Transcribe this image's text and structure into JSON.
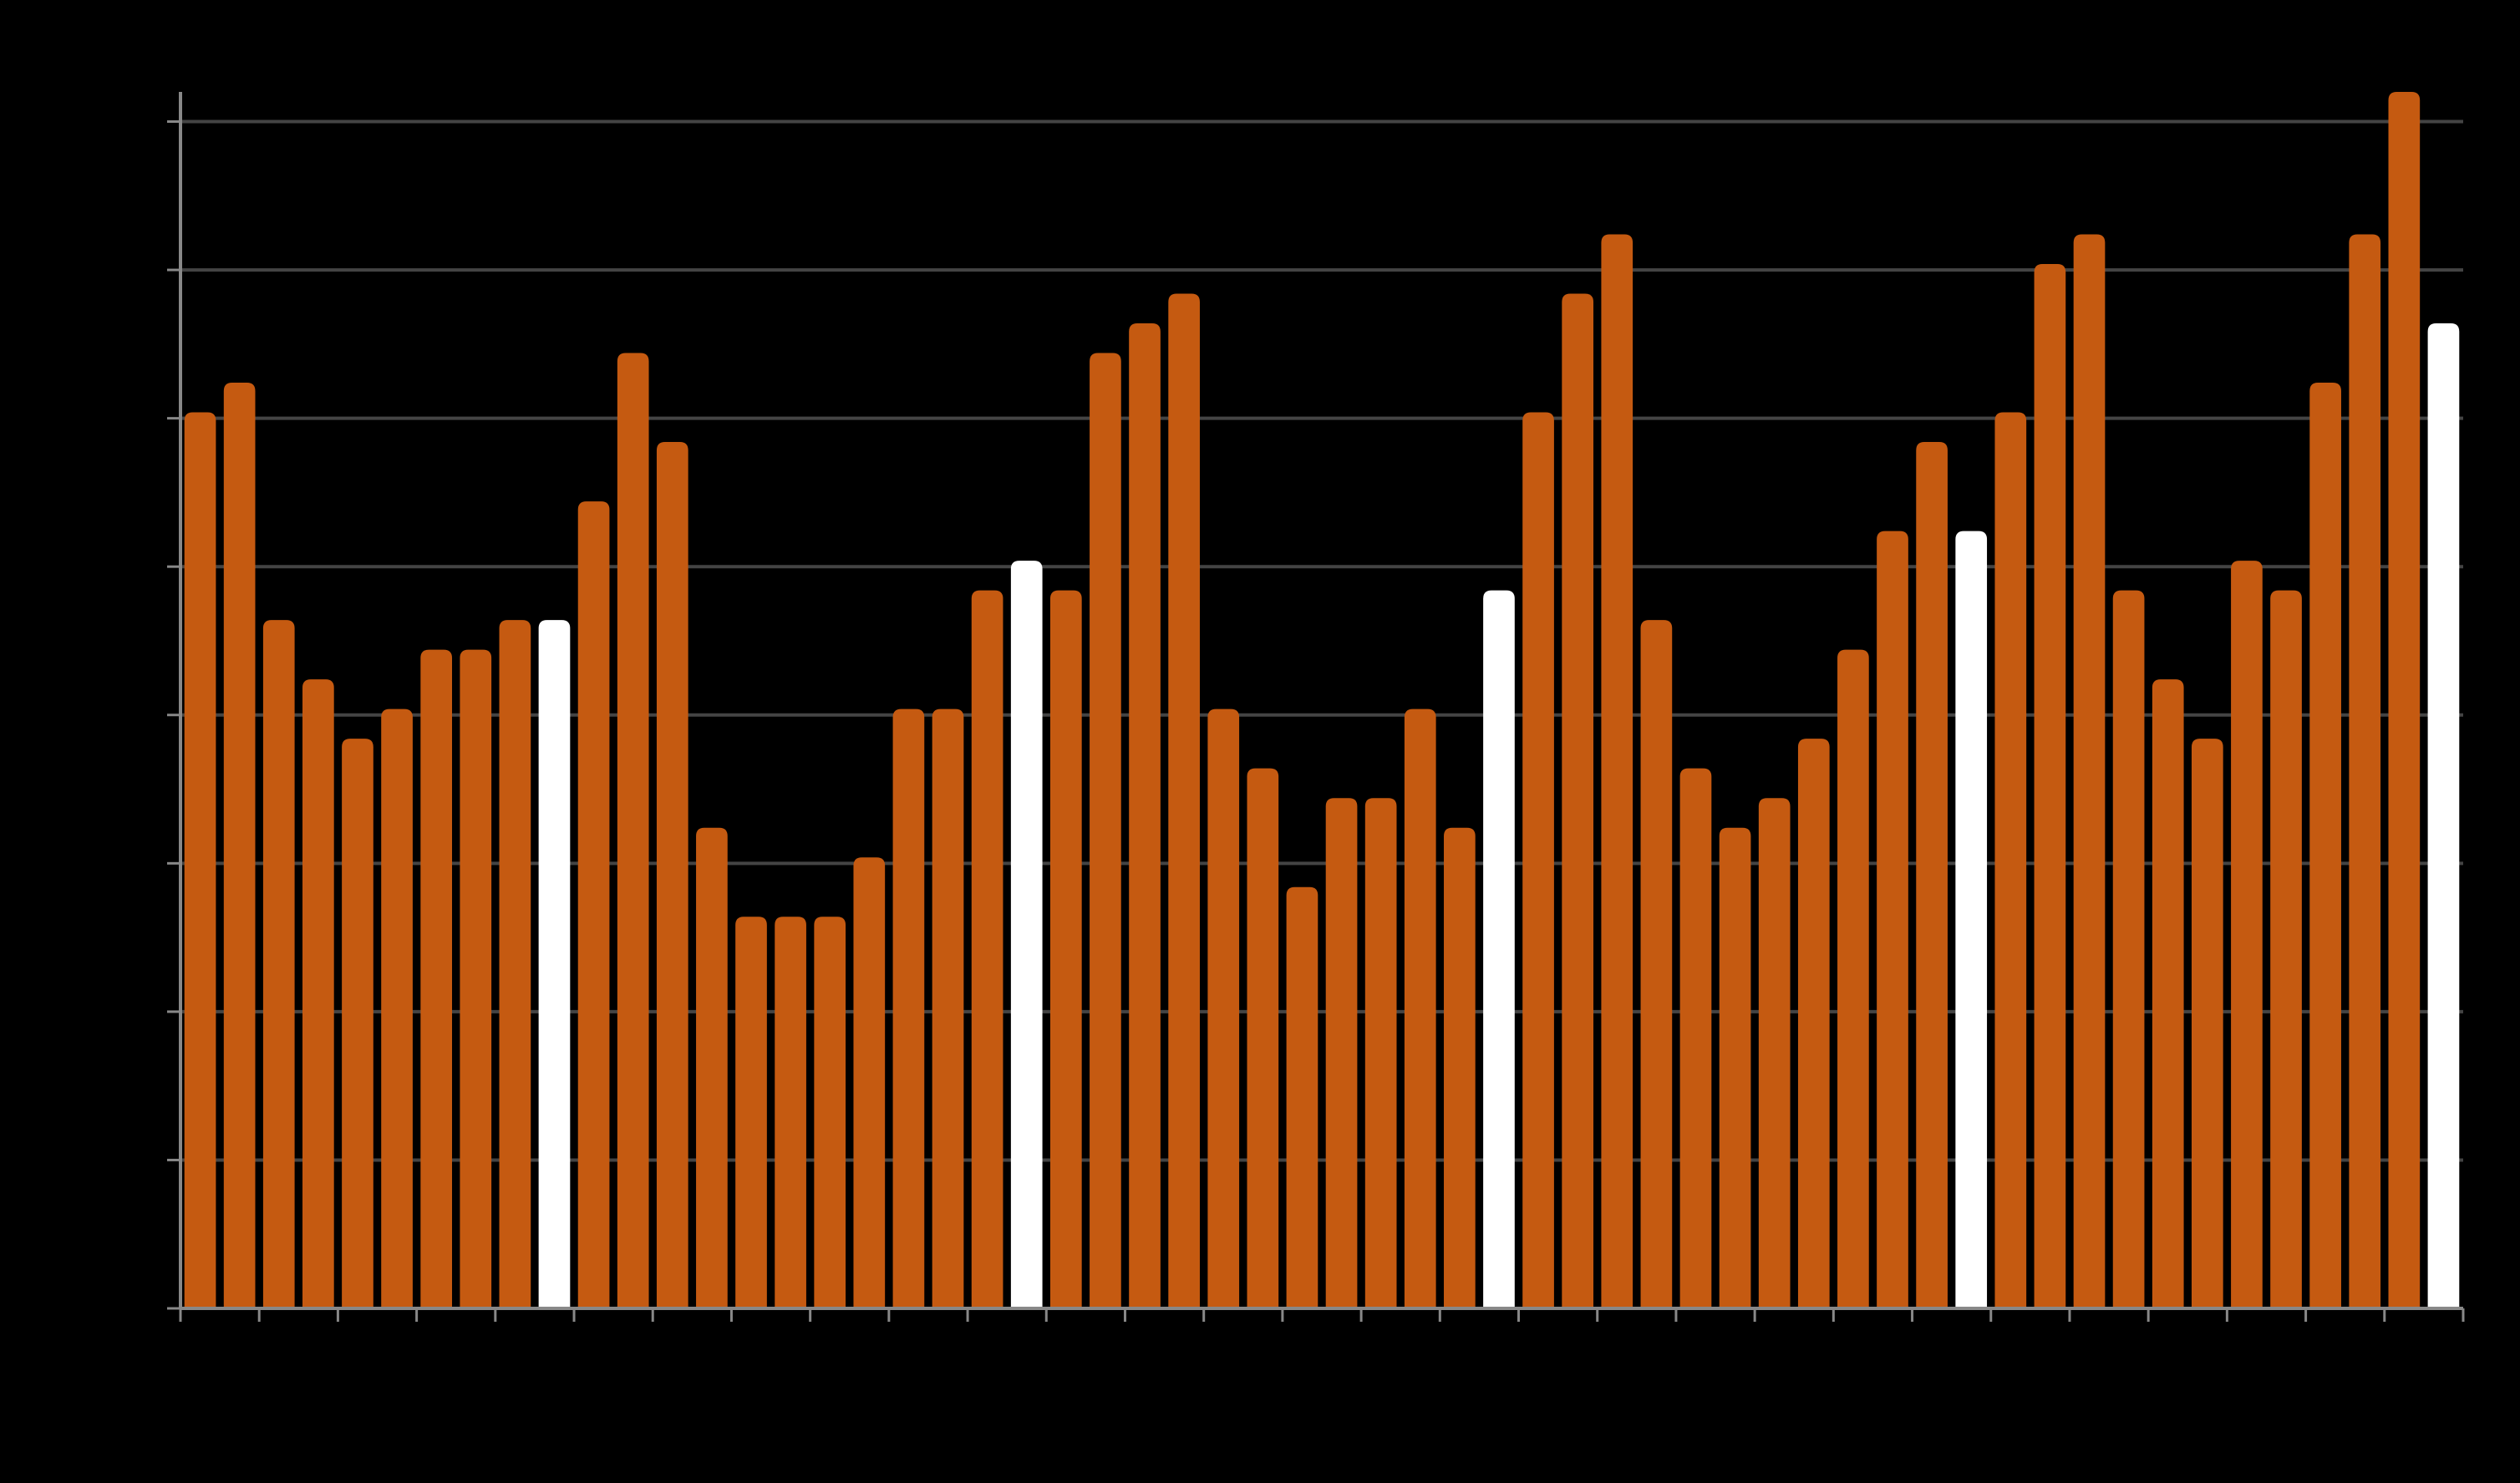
{
  "chart_data": {
    "type": "bar",
    "title": "",
    "xlabel": "",
    "ylabel": "",
    "grid": true,
    "legend": "none",
    "ylim": [
      0,
      41
    ],
    "y_gridlines": [
      0,
      5,
      10,
      15,
      20,
      25,
      30,
      35,
      40
    ],
    "colors": {
      "background": "#000000",
      "bar": "#C55A11",
      "highlight": "#FFFFFF",
      "grid": "#444444",
      "axis": "#888888"
    },
    "values": [
      30.2,
      31.2,
      23.2,
      21.2,
      19.2,
      20.2,
      22.2,
      22.2,
      23.2,
      23.2,
      27.2,
      32.2,
      29.2,
      16.2,
      13.2,
      13.2,
      13.2,
      15.2,
      20.2,
      20.2,
      24.2,
      25.2,
      24.2,
      32.2,
      33.2,
      34.2,
      20.2,
      18.2,
      14.2,
      17.2,
      17.2,
      20.2,
      16.2,
      24.2,
      30.2,
      34.2,
      36.2,
      23.2,
      18.2,
      16.2,
      17.2,
      19.2,
      22.2,
      26.2,
      29.2,
      26.2,
      30.2,
      35.2,
      36.2,
      24.2,
      21.2,
      19.2,
      25.2,
      24.2,
      31.2,
      36.2,
      41.2,
      33.2
    ],
    "highlight_indices": [
      9,
      21,
      33,
      45,
      57
    ]
  }
}
